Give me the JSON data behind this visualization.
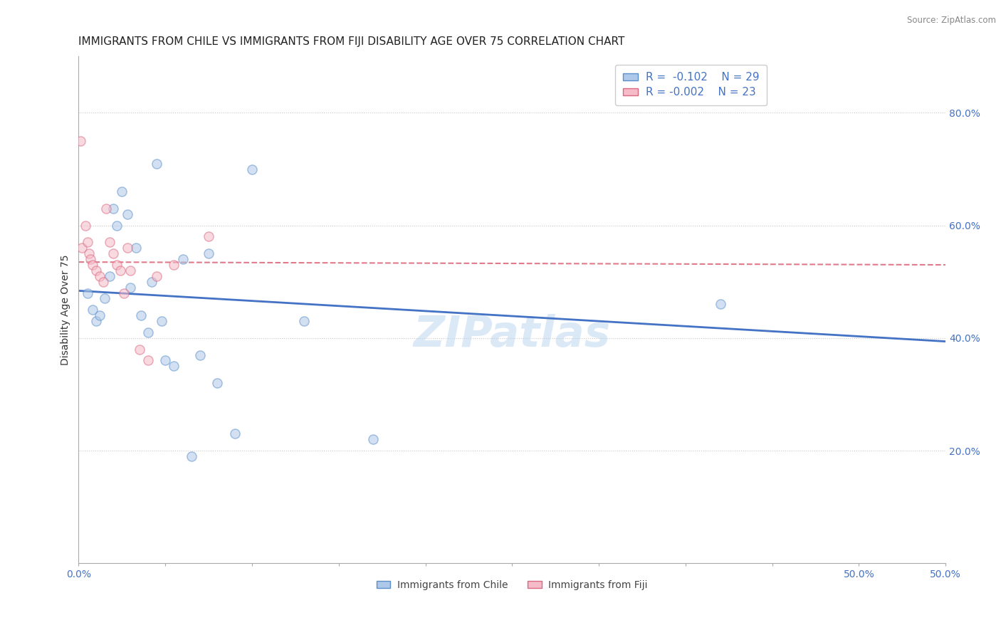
{
  "title": "IMMIGRANTS FROM CHILE VS IMMIGRANTS FROM FIJI DISABILITY AGE OVER 75 CORRELATION CHART",
  "source": "Source: ZipAtlas.com",
  "ylabel": "Disability Age Over 75",
  "xlim": [
    0.0,
    0.5
  ],
  "ylim": [
    0.0,
    0.9
  ],
  "xticks": [
    0.0,
    0.05,
    0.1,
    0.15,
    0.2,
    0.25,
    0.3,
    0.35,
    0.4,
    0.45,
    0.5
  ],
  "xtick_labels_show": {
    "0.0": "0.0%",
    "0.5": "50.0%"
  },
  "yticks": [
    0.0,
    0.2,
    0.4,
    0.6,
    0.8
  ],
  "ytick_labels": [
    "",
    "20.0%",
    "40.0%",
    "60.0%",
    "80.0%"
  ],
  "chile_color": "#adc8e8",
  "chile_edge_color": "#5b8fc9",
  "fiji_color": "#f5bbc8",
  "fiji_edge_color": "#d96880",
  "chile_line_color": "#4472c4",
  "fiji_line_color": "#e07a8a",
  "grid_color": "#c8c8c8",
  "background_color": "#ffffff",
  "watermark": "ZIPatlas",
  "chile_scatter_x": [
    0.005,
    0.008,
    0.01,
    0.012,
    0.015,
    0.018,
    0.02,
    0.022,
    0.025,
    0.028,
    0.03,
    0.033,
    0.036,
    0.04,
    0.042,
    0.045,
    0.048,
    0.05,
    0.055,
    0.06,
    0.065,
    0.07,
    0.075,
    0.08,
    0.09,
    0.1,
    0.13,
    0.17,
    0.37
  ],
  "chile_scatter_y": [
    0.48,
    0.45,
    0.43,
    0.44,
    0.47,
    0.51,
    0.63,
    0.6,
    0.66,
    0.62,
    0.49,
    0.56,
    0.44,
    0.41,
    0.5,
    0.71,
    0.43,
    0.36,
    0.35,
    0.54,
    0.19,
    0.37,
    0.55,
    0.32,
    0.23,
    0.7,
    0.43,
    0.22,
    0.46
  ],
  "fiji_scatter_x": [
    0.001,
    0.002,
    0.004,
    0.005,
    0.006,
    0.007,
    0.008,
    0.01,
    0.012,
    0.014,
    0.016,
    0.018,
    0.02,
    0.022,
    0.024,
    0.026,
    0.028,
    0.03,
    0.035,
    0.04,
    0.045,
    0.055,
    0.075
  ],
  "fiji_scatter_y": [
    0.75,
    0.56,
    0.6,
    0.57,
    0.55,
    0.54,
    0.53,
    0.52,
    0.51,
    0.5,
    0.63,
    0.57,
    0.55,
    0.53,
    0.52,
    0.48,
    0.56,
    0.52,
    0.38,
    0.36,
    0.51,
    0.53,
    0.58
  ],
  "chile_trend_x": [
    0.0,
    0.5
  ],
  "chile_trend_y": [
    0.484,
    0.394
  ],
  "fiji_trend_x": [
    0.0,
    0.5
  ],
  "fiji_trend_y": [
    0.535,
    0.53
  ],
  "legend_color": "#4472c4",
  "title_fontsize": 11,
  "axis_label_fontsize": 10,
  "tick_fontsize": 10,
  "scatter_size": 90,
  "scatter_alpha": 0.55
}
